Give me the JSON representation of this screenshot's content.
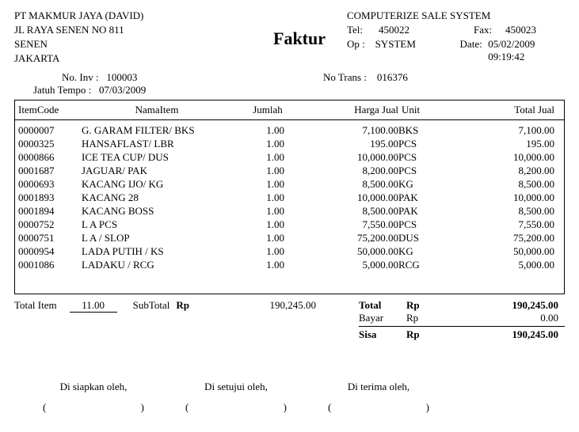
{
  "company": {
    "name": "PT MAKMUR JAYA (DAVID)",
    "address1": "JL RAYA SENEN NO 811",
    "address2": "SENEN",
    "city": "JAKARTA"
  },
  "system": {
    "title": "COMPUTERIZE SALE SYSTEM",
    "tel_label": "Tel:",
    "tel": "450022",
    "fax_label": "Fax:",
    "fax": "450023",
    "op_label": "Op :",
    "op": "SYSTEM",
    "date_label": "Date:",
    "date": "05/02/2009 09:19:42"
  },
  "doc_title": "Faktur",
  "meta": {
    "inv_label": "No. Inv :",
    "inv_no": "100003",
    "jt_label": "Jatuh Tempo :",
    "jt": "07/03/2009",
    "trans_label": "No Trans :",
    "trans_no": "016376"
  },
  "columns": {
    "code": "ItemCode",
    "name": "NamaItem",
    "jumlah": "Jumlah",
    "harga": "Harga Jual",
    "unit": "Unit",
    "total": "Total Jual"
  },
  "rows": [
    {
      "code": "0000007",
      "name": "G. GARAM FILTER/ BKS",
      "jml": "1.00",
      "hj": "7,100.00",
      "unit": "BKS",
      "tj": "7,100.00"
    },
    {
      "code": "0000325",
      "name": "HANSAFLAST/ LBR",
      "jml": "1.00",
      "hj": "195.00",
      "unit": "PCS",
      "tj": "195.00"
    },
    {
      "code": "0000866",
      "name": "ICE TEA CUP/ DUS",
      "jml": "1.00",
      "hj": "10,000.00",
      "unit": "PCS",
      "tj": "10,000.00"
    },
    {
      "code": "0001687",
      "name": "JAGUAR/ PAK",
      "jml": "1.00",
      "hj": "8,200.00",
      "unit": "PCS",
      "tj": "8,200.00"
    },
    {
      "code": "0000693",
      "name": "KACANG IJO/ KG",
      "jml": "1.00",
      "hj": "8,500.00",
      "unit": "KG",
      "tj": "8,500.00"
    },
    {
      "code": "0001893",
      "name": "KACANG 28",
      "jml": "1.00",
      "hj": "10,000.00",
      "unit": "PAK",
      "tj": "10,000.00"
    },
    {
      "code": "0001894",
      "name": "KACANG BOSS",
      "jml": "1.00",
      "hj": "8,500.00",
      "unit": "PAK",
      "tj": "8,500.00"
    },
    {
      "code": "0000752",
      "name": "L A PCS",
      "jml": "1.00",
      "hj": "7,550.00",
      "unit": "PCS",
      "tj": "7,550.00"
    },
    {
      "code": "0000751",
      "name": "L A / SLOP",
      "jml": "1.00",
      "hj": "75,200.00",
      "unit": "DUS",
      "tj": "75,200.00"
    },
    {
      "code": "0000954",
      "name": "LADA PUTIH / KS",
      "jml": "1.00",
      "hj": "50,000.00",
      "unit": "KG",
      "tj": "50,000.00"
    },
    {
      "code": "0001086",
      "name": "LADAKU / RCG",
      "jml": "1.00",
      "hj": "5,000.00",
      "unit": "RCG",
      "tj": "5,000.00"
    }
  ],
  "totals": {
    "total_item_label": "Total Item",
    "total_item": "11.00",
    "subtotal_label": "SubTotal",
    "currency": "Rp",
    "subtotal": "190,245.00",
    "total_label": "Total",
    "total": "190,245.00",
    "bayar_label": "Bayar",
    "bayar": "0.00",
    "sisa_label": "Sisa",
    "sisa": "190,245.00"
  },
  "signatures": {
    "prepared": "Di siapkan oleh,",
    "approved": "Di setujui oleh,",
    "received": "Di terima oleh,",
    "paren_open": "(",
    "paren_close": ")"
  }
}
